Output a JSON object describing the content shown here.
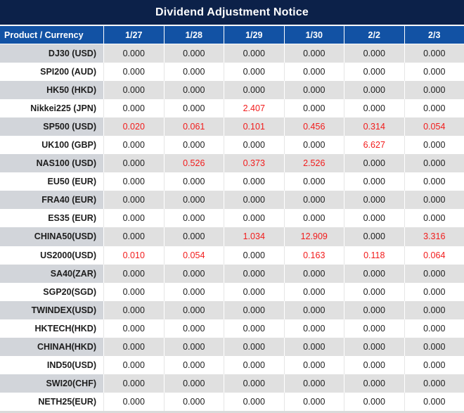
{
  "chart_data": {
    "type": "table",
    "title": "Dividend Adjustment Notice",
    "columns": [
      "Product / Currency",
      "1/27",
      "1/28",
      "1/29",
      "1/30",
      "2/2",
      "2/3"
    ],
    "rows": [
      {
        "product": "DJ30 (USD)",
        "values": [
          "0.000",
          "0.000",
          "0.000",
          "0.000",
          "0.000",
          "0.000"
        ],
        "red": [
          0,
          0,
          0,
          0,
          0,
          0
        ]
      },
      {
        "product": "SPI200 (AUD)",
        "values": [
          "0.000",
          "0.000",
          "0.000",
          "0.000",
          "0.000",
          "0.000"
        ],
        "red": [
          0,
          0,
          0,
          0,
          0,
          0
        ]
      },
      {
        "product": "HK50 (HKD)",
        "values": [
          "0.000",
          "0.000",
          "0.000",
          "0.000",
          "0.000",
          "0.000"
        ],
        "red": [
          0,
          0,
          0,
          0,
          0,
          0
        ]
      },
      {
        "product": "Nikkei225 (JPN)",
        "values": [
          "0.000",
          "0.000",
          "2.407",
          "0.000",
          "0.000",
          "0.000"
        ],
        "red": [
          0,
          0,
          1,
          0,
          0,
          0
        ]
      },
      {
        "product": "SP500 (USD)",
        "values": [
          "0.020",
          "0.061",
          "0.101",
          "0.456",
          "0.314",
          "0.054"
        ],
        "red": [
          1,
          1,
          1,
          1,
          1,
          1
        ]
      },
      {
        "product": "UK100 (GBP)",
        "values": [
          "0.000",
          "0.000",
          "0.000",
          "0.000",
          "6.627",
          "0.000"
        ],
        "red": [
          0,
          0,
          0,
          0,
          1,
          0
        ]
      },
      {
        "product": "NAS100 (USD)",
        "values": [
          "0.000",
          "0.526",
          "0.373",
          "2.526",
          "0.000",
          "0.000"
        ],
        "red": [
          0,
          1,
          1,
          1,
          0,
          0
        ]
      },
      {
        "product": "EU50 (EUR)",
        "values": [
          "0.000",
          "0.000",
          "0.000",
          "0.000",
          "0.000",
          "0.000"
        ],
        "red": [
          0,
          0,
          0,
          0,
          0,
          0
        ]
      },
      {
        "product": "FRA40 (EUR)",
        "values": [
          "0.000",
          "0.000",
          "0.000",
          "0.000",
          "0.000",
          "0.000"
        ],
        "red": [
          0,
          0,
          0,
          0,
          0,
          0
        ]
      },
      {
        "product": "ES35 (EUR)",
        "values": [
          "0.000",
          "0.000",
          "0.000",
          "0.000",
          "0.000",
          "0.000"
        ],
        "red": [
          0,
          0,
          0,
          0,
          0,
          0
        ]
      },
      {
        "product": "CHINA50(USD)",
        "values": [
          "0.000",
          "0.000",
          "1.034",
          "12.909",
          "0.000",
          "3.316"
        ],
        "red": [
          0,
          0,
          1,
          1,
          0,
          1
        ]
      },
      {
        "product": "US2000(USD)",
        "values": [
          "0.010",
          "0.054",
          "0.000",
          "0.163",
          "0.118",
          "0.064"
        ],
        "red": [
          1,
          1,
          0,
          1,
          1,
          1
        ]
      },
      {
        "product": "SA40(ZAR)",
        "values": [
          "0.000",
          "0.000",
          "0.000",
          "0.000",
          "0.000",
          "0.000"
        ],
        "red": [
          0,
          0,
          0,
          0,
          0,
          0
        ]
      },
      {
        "product": "SGP20(SGD)",
        "values": [
          "0.000",
          "0.000",
          "0.000",
          "0.000",
          "0.000",
          "0.000"
        ],
        "red": [
          0,
          0,
          0,
          0,
          0,
          0
        ]
      },
      {
        "product": "TWINDEX(USD)",
        "values": [
          "0.000",
          "0.000",
          "0.000",
          "0.000",
          "0.000",
          "0.000"
        ],
        "red": [
          0,
          0,
          0,
          0,
          0,
          0
        ]
      },
      {
        "product": "HKTECH(HKD)",
        "values": [
          "0.000",
          "0.000",
          "0.000",
          "0.000",
          "0.000",
          "0.000"
        ],
        "red": [
          0,
          0,
          0,
          0,
          0,
          0
        ]
      },
      {
        "product": "CHINAH(HKD)",
        "values": [
          "0.000",
          "0.000",
          "0.000",
          "0.000",
          "0.000",
          "0.000"
        ],
        "red": [
          0,
          0,
          0,
          0,
          0,
          0
        ]
      },
      {
        "product": "IND50(USD)",
        "values": [
          "0.000",
          "0.000",
          "0.000",
          "0.000",
          "0.000",
          "0.000"
        ],
        "red": [
          0,
          0,
          0,
          0,
          0,
          0
        ]
      },
      {
        "product": "SWI20(CHF)",
        "values": [
          "0.000",
          "0.000",
          "0.000",
          "0.000",
          "0.000",
          "0.000"
        ],
        "red": [
          0,
          0,
          0,
          0,
          0,
          0
        ]
      },
      {
        "product": "NETH25(EUR)",
        "values": [
          "0.000",
          "0.000",
          "0.000",
          "0.000",
          "0.000",
          "0.000"
        ],
        "red": [
          0,
          0,
          0,
          0,
          0,
          0
        ]
      }
    ],
    "colors": {
      "title_bg": "#0c2149",
      "header_bg": "#1252a4",
      "shaded_label_bg": "#d2d5da",
      "shaded_value_bg": "#e0e0e0",
      "highlight_red": "#f21b1b",
      "text": "#1d1d1d"
    }
  }
}
